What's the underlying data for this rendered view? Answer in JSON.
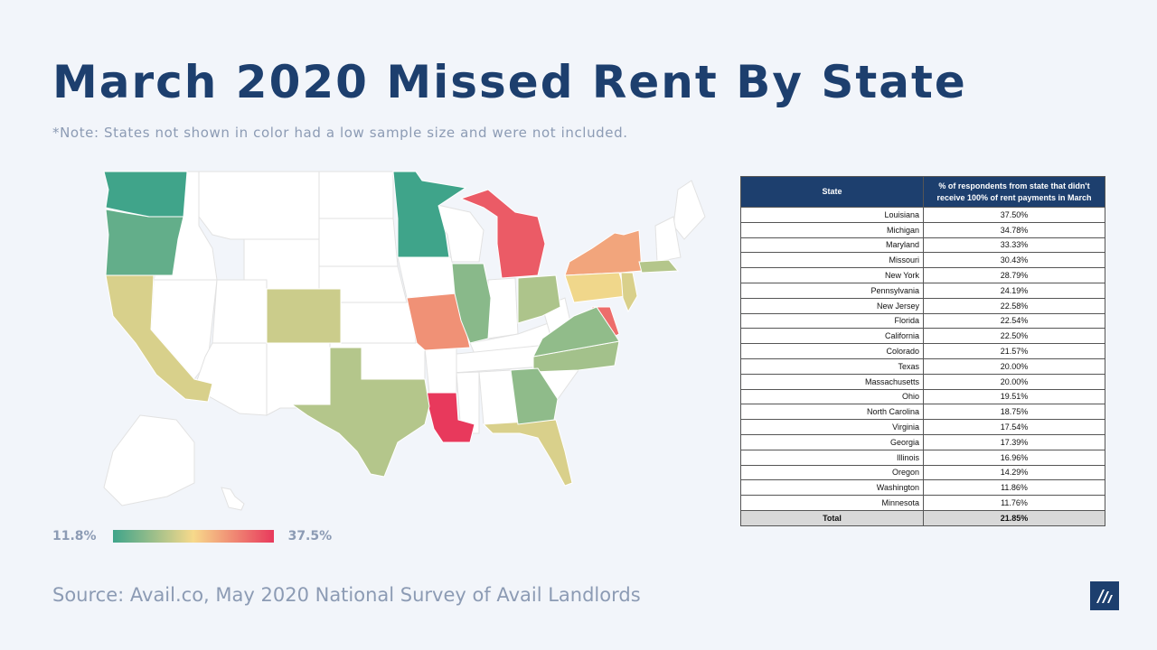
{
  "header": {
    "title": "March 2020 Missed Rent By State",
    "note": "*Note: States not shown in color had a low sample size and were not included."
  },
  "legend": {
    "min_label": "11.8%",
    "max_label": "37.5%"
  },
  "source": "Source: Avail.co, May 2020 National Survey of Avail Landlords",
  "colors": {
    "low": "#3fa48a",
    "mid": "#f7d98b",
    "high": "#e8395c",
    "title": "#1d3f6e"
  },
  "table": {
    "col1_header": "State",
    "col2_header": "% of respondents from state that didn't receive 100% of rent payments in March",
    "rows": [
      {
        "state": "Louisiana",
        "value": "37.50%"
      },
      {
        "state": "Michigan",
        "value": "34.78%"
      },
      {
        "state": "Maryland",
        "value": "33.33%"
      },
      {
        "state": "Missouri",
        "value": "30.43%"
      },
      {
        "state": "New York",
        "value": "28.79%"
      },
      {
        "state": "Pennsylvania",
        "value": "24.19%"
      },
      {
        "state": "New Jersey",
        "value": "22.58%"
      },
      {
        "state": "Florida",
        "value": "22.54%"
      },
      {
        "state": "California",
        "value": "22.50%"
      },
      {
        "state": "Colorado",
        "value": "21.57%"
      },
      {
        "state": "Texas",
        "value": "20.00%"
      },
      {
        "state": "Massachusetts",
        "value": "20.00%"
      },
      {
        "state": "Ohio",
        "value": "19.51%"
      },
      {
        "state": "North Carolina",
        "value": "18.75%"
      },
      {
        "state": "Virginia",
        "value": "17.54%"
      },
      {
        "state": "Georgia",
        "value": "17.39%"
      },
      {
        "state": "Illinois",
        "value": "16.96%"
      },
      {
        "state": "Oregon",
        "value": "14.29%"
      },
      {
        "state": "Washington",
        "value": "11.86%"
      },
      {
        "state": "Minnesota",
        "value": "11.76%"
      }
    ],
    "total": {
      "state": "Total",
      "value": "21.85%"
    }
  },
  "chart_data": {
    "type": "choropleth",
    "color_scale": {
      "min": 11.8,
      "max": 37.5,
      "colors": [
        "#3fa48a",
        "#f7d98b",
        "#e8395c"
      ]
    },
    "regions": [
      {
        "name": "Louisiana",
        "value": 37.5
      },
      {
        "name": "Michigan",
        "value": 34.78
      },
      {
        "name": "Maryland",
        "value": 33.33
      },
      {
        "name": "Missouri",
        "value": 30.43
      },
      {
        "name": "New York",
        "value": 28.79
      },
      {
        "name": "Pennsylvania",
        "value": 24.19
      },
      {
        "name": "New Jersey",
        "value": 22.58
      },
      {
        "name": "Florida",
        "value": 22.54
      },
      {
        "name": "California",
        "value": 22.5
      },
      {
        "name": "Colorado",
        "value": 21.57
      },
      {
        "name": "Texas",
        "value": 20.0
      },
      {
        "name": "Massachusetts",
        "value": 20.0
      },
      {
        "name": "Ohio",
        "value": 19.51
      },
      {
        "name": "North Carolina",
        "value": 18.75
      },
      {
        "name": "Virginia",
        "value": 17.54
      },
      {
        "name": "Georgia",
        "value": 17.39
      },
      {
        "name": "Illinois",
        "value": 16.96
      },
      {
        "name": "Oregon",
        "value": 14.29
      },
      {
        "name": "Washington",
        "value": 11.86
      },
      {
        "name": "Minnesota",
        "value": 11.76
      }
    ]
  }
}
